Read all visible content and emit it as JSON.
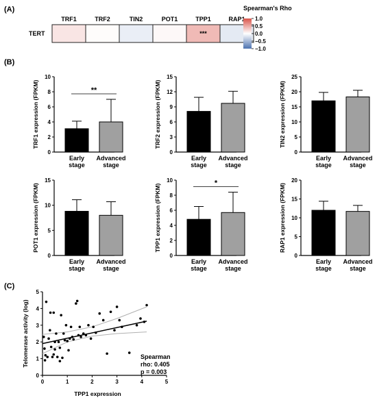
{
  "panel_labels": {
    "a": "(A)",
    "b": "(B)",
    "c": "(C)"
  },
  "chart_data": [
    {
      "type": "heatmap",
      "row_label": "TERT",
      "columns": [
        "TRF1",
        "TRF2",
        "TIN2",
        "POT1",
        "TPP1",
        "RAP1"
      ],
      "values": [
        0.15,
        0.02,
        -0.12,
        0.04,
        0.405,
        -0.15
      ],
      "cell_annotations": [
        "",
        "",
        "",
        "",
        "***",
        ""
      ],
      "colorbar": {
        "title": "Spearman's Rho",
        "ticks": [
          "1.0",
          "0.5",
          "0.0",
          "−0.5",
          "−1.0"
        ],
        "tick_values": [
          1.0,
          0.5,
          0.0,
          -0.5,
          -1.0
        ],
        "range": [
          -1,
          1
        ],
        "colors": {
          "high": "#d9544a",
          "mid": "#ffffff",
          "low": "#4c72b0"
        }
      }
    },
    {
      "type": "bar",
      "group": "B",
      "categories": [
        "Early\nstage",
        "Advanced\nstage"
      ],
      "bar_colors": [
        "#000000",
        "#a0a0a0"
      ],
      "panels": [
        {
          "ylabel": "TRF1 expression (FPKM)",
          "ylim": [
            0,
            10
          ],
          "ticks": [
            0,
            2,
            4,
            6,
            8,
            10
          ],
          "values": [
            3.1,
            4.0
          ],
          "errors": [
            1.0,
            3.0
          ],
          "significance": "**"
        },
        {
          "ylabel": "TRF2 expression (FPKM)",
          "ylim": [
            0,
            15
          ],
          "ticks": [
            0,
            3,
            6,
            9,
            12,
            15
          ],
          "values": [
            8.1,
            9.7
          ],
          "errors": [
            2.8,
            2.4
          ],
          "significance": ""
        },
        {
          "ylabel": "TIN2 expression (FPKM)",
          "ylim": [
            0,
            25
          ],
          "ticks": [
            0,
            5,
            10,
            15,
            20,
            25
          ],
          "values": [
            17.0,
            18.3
          ],
          "errors": [
            2.8,
            2.2
          ],
          "significance": ""
        },
        {
          "ylabel": "POT1 expression (FPKM)",
          "ylim": [
            0,
            15
          ],
          "ticks": [
            0,
            5,
            10,
            15
          ],
          "values": [
            8.8,
            8.0
          ],
          "errors": [
            2.3,
            2.7
          ],
          "significance": ""
        },
        {
          "ylabel": "TPP1 expression (FPKM)",
          "ylim": [
            0,
            10
          ],
          "ticks": [
            0,
            2,
            4,
            6,
            8,
            10
          ],
          "values": [
            4.8,
            5.7
          ],
          "errors": [
            1.7,
            2.7
          ],
          "significance": "*"
        },
        {
          "ylabel": "RAP1 expression (FPKM)",
          "ylim": [
            0,
            20
          ],
          "ticks": [
            0,
            5,
            10,
            15,
            20
          ],
          "values": [
            12.0,
            11.7
          ],
          "errors": [
            2.4,
            1.6
          ],
          "significance": ""
        }
      ]
    },
    {
      "type": "scatter",
      "group": "C",
      "xlabel": "TPP1 expression",
      "ylabel": "Telomerase activity (log)",
      "xlim": [
        0,
        5
      ],
      "ylim": [
        0,
        5
      ],
      "xticks": [
        0,
        1,
        2,
        3,
        4,
        5
      ],
      "yticks": [
        0,
        1,
        2,
        3,
        4,
        5
      ],
      "annotation": [
        "Spearman",
        "rho: 0.405",
        "p = 0.003"
      ],
      "fit": {
        "slope": 0.32,
        "intercept": 1.9
      },
      "ci": {
        "upper": [
          [
            0,
            2.45
          ],
          [
            1,
            2.6
          ],
          [
            2,
            2.9
          ],
          [
            3,
            3.4
          ],
          [
            4.2,
            4.1
          ]
        ],
        "lower": [
          [
            0,
            1.3
          ],
          [
            1,
            2.0
          ],
          [
            2,
            2.35
          ],
          [
            3,
            2.5
          ],
          [
            4.2,
            2.6
          ]
        ]
      },
      "points": [
        [
          0.05,
          2.3
        ],
        [
          0.08,
          1.6
        ],
        [
          0.1,
          0.9
        ],
        [
          0.12,
          1.2
        ],
        [
          0.15,
          4.4
        ],
        [
          0.2,
          1.1
        ],
        [
          0.25,
          2.2
        ],
        [
          0.3,
          2.7
        ],
        [
          0.32,
          3.75
        ],
        [
          0.35,
          1.7
        ],
        [
          0.4,
          1.1
        ],
        [
          0.45,
          3.75
        ],
        [
          0.45,
          1.25
        ],
        [
          0.5,
          2.0
        ],
        [
          0.5,
          1.55
        ],
        [
          0.55,
          2.5
        ],
        [
          0.6,
          1.1
        ],
        [
          0.65,
          2.0
        ],
        [
          0.7,
          0.85
        ],
        [
          0.7,
          1.65
        ],
        [
          0.75,
          3.6
        ],
        [
          0.8,
          1.05
        ],
        [
          0.85,
          2.5
        ],
        [
          0.9,
          2.1
        ],
        [
          0.95,
          3.0
        ],
        [
          1.0,
          2.05
        ],
        [
          1.05,
          1.5
        ],
        [
          1.1,
          2.2
        ],
        [
          1.15,
          2.9
        ],
        [
          1.2,
          2.3
        ],
        [
          1.25,
          2.15
        ],
        [
          1.35,
          4.3
        ],
        [
          1.4,
          4.45
        ],
        [
          1.45,
          2.4
        ],
        [
          1.5,
          2.9
        ],
        [
          1.55,
          2.3
        ],
        [
          1.65,
          2.5
        ],
        [
          1.75,
          2.4
        ],
        [
          1.85,
          3.0
        ],
        [
          1.95,
          2.2
        ],
        [
          2.05,
          2.9
        ],
        [
          2.15,
          2.55
        ],
        [
          2.3,
          3.7
        ],
        [
          2.45,
          3.3
        ],
        [
          2.6,
          1.3
        ],
        [
          2.75,
          3.8
        ],
        [
          2.9,
          2.7
        ],
        [
          3.0,
          4.1
        ],
        [
          3.1,
          3.3
        ],
        [
          3.2,
          2.9
        ],
        [
          3.5,
          1.35
        ],
        [
          3.8,
          3.0
        ],
        [
          3.95,
          3.4
        ],
        [
          4.1,
          3.2
        ],
        [
          4.2,
          4.2
        ]
      ]
    }
  ]
}
